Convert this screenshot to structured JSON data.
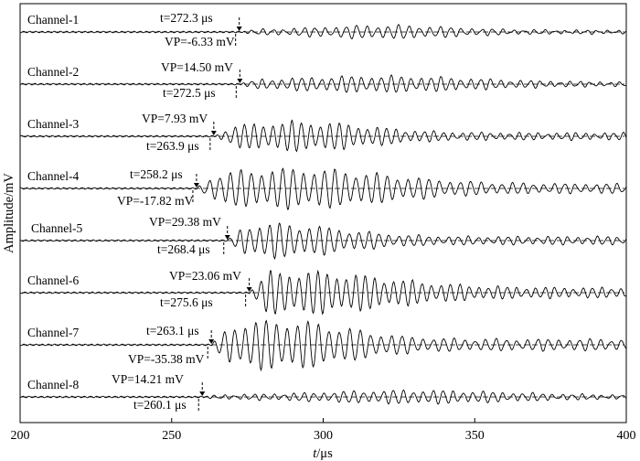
{
  "chart_data": {
    "type": "line",
    "xlabel_prefix": "t",
    "xlabel_suffix": "/μs",
    "ylabel": "Amplitude/mV",
    "xlim": [
      200,
      400
    ],
    "x_ticks": [
      "200",
      "250",
      "300",
      "350",
      "400"
    ],
    "series": [
      {
        "name": "Channel-1",
        "arrival_time": "t=272.3 μs",
        "peak_voltage": "VP=-6.33 mV",
        "onset_us": 272.3,
        "amp": 0.45,
        "envelope_peak_us": 320
      },
      {
        "name": "Channel-2",
        "arrival_time": "t=272.5 μs",
        "peak_voltage": "VP=14.50 mV",
        "onset_us": 272.5,
        "amp": 0.55,
        "envelope_peak_us": 318
      },
      {
        "name": "Channel-3",
        "arrival_time": "t=263.9 μs",
        "peak_voltage": "VP=7.93 mV",
        "onset_us": 263.9,
        "amp": 1.0,
        "envelope_peak_us": 292
      },
      {
        "name": "Channel-4",
        "arrival_time": "t=258.2 μs",
        "peak_voltage": "VP=-17.82 mV",
        "onset_us": 258.2,
        "amp": 1.35,
        "envelope_peak_us": 290
      },
      {
        "name": "Channel-5",
        "arrival_time": "t=268.4 μs",
        "peak_voltage": "VP=29.38 mV",
        "onset_us": 268.4,
        "amp": 1.15,
        "envelope_peak_us": 283
      },
      {
        "name": "Channel-6",
        "arrival_time": "t=275.6 μs",
        "peak_voltage": "VP=23.06 mV",
        "onset_us": 275.6,
        "amp": 1.45,
        "envelope_peak_us": 290
      },
      {
        "name": "Channel-7",
        "arrival_time": "t=263.1 μs",
        "peak_voltage": "VP=-35.38 mV",
        "onset_us": 263.1,
        "amp": 1.65,
        "envelope_peak_us": 285
      },
      {
        "name": "Channel-8",
        "arrival_time": "t=260.1 μs",
        "peak_voltage": "VP=14.21 mV",
        "onset_us": 260.1,
        "amp": 0.45,
        "envelope_peak_us": 330
      }
    ]
  }
}
